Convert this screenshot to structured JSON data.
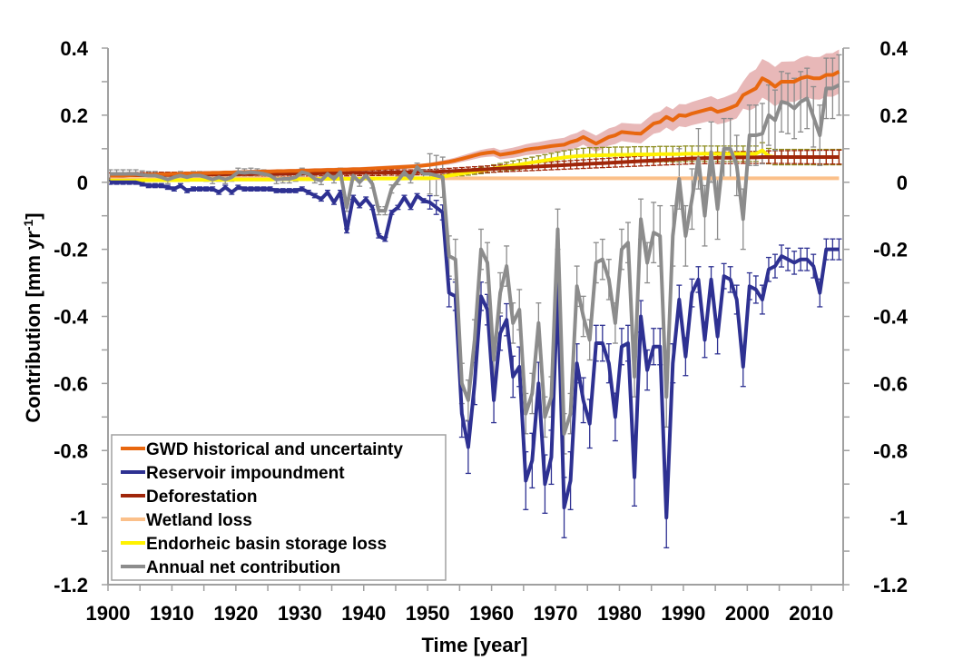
{
  "chart_data": {
    "type": "line",
    "title": "",
    "xlabel": "Time [year]",
    "ylabel": "Contribution [mm yr",
    "ylabel_superscript": "-1",
    "ylabel_close": "]",
    "xlim": [
      1900,
      2015
    ],
    "ylim": [
      -1.2,
      0.4
    ],
    "x_ticks": [
      1900,
      1910,
      1920,
      1930,
      1940,
      1950,
      1960,
      1970,
      1980,
      1990,
      2000,
      2010
    ],
    "x_tick_labels": [
      "1900",
      "1910",
      "1920",
      "1930",
      "1940",
      "1950",
      "1960",
      "1970",
      "1980",
      "1990",
      "2000",
      "2010"
    ],
    "y_ticks": [
      0.4,
      0.2,
      0,
      -0.2,
      -0.4,
      -0.6,
      -0.8,
      -1,
      -1.2
    ],
    "y_tick_labels": [
      "0.4",
      "0.2",
      "0",
      "-0.2",
      "-0.4",
      "-0.6",
      "-0.8",
      "-1",
      "-1.2"
    ],
    "grid": false,
    "legend_position": "bottom-left",
    "x_start": 1900,
    "series": [
      {
        "name": "GWD historical and uncertainty",
        "color": "#E8670F",
        "band_color": "#E0A0A0",
        "uncertainty": "band",
        "values": [
          0.02,
          0.02,
          0.021,
          0.021,
          0.022,
          0.022,
          0.023,
          0.023,
          0.024,
          0.024,
          0.025,
          0.025,
          0.026,
          0.026,
          0.027,
          0.027,
          0.028,
          0.028,
          0.029,
          0.029,
          0.03,
          0.03,
          0.031,
          0.031,
          0.032,
          0.032,
          0.033,
          0.033,
          0.034,
          0.034,
          0.035,
          0.035,
          0.036,
          0.036,
          0.037,
          0.037,
          0.038,
          0.038,
          0.039,
          0.039,
          0.04,
          0.041,
          0.042,
          0.043,
          0.044,
          0.045,
          0.046,
          0.047,
          0.048,
          0.05,
          0.052,
          0.055,
          0.058,
          0.061,
          0.065,
          0.07,
          0.075,
          0.08,
          0.085,
          0.088,
          0.09,
          0.082,
          0.085,
          0.088,
          0.092,
          0.097,
          0.1,
          0.102,
          0.105,
          0.108,
          0.11,
          0.112,
          0.12,
          0.125,
          0.135,
          0.125,
          0.115,
          0.125,
          0.135,
          0.14,
          0.15,
          0.148,
          0.146,
          0.145,
          0.16,
          0.175,
          0.18,
          0.195,
          0.185,
          0.2,
          0.198,
          0.205,
          0.21,
          0.215,
          0.22,
          0.21,
          0.215,
          0.222,
          0.23,
          0.26,
          0.27,
          0.28,
          0.31,
          0.3,
          0.285,
          0.3,
          0.3,
          0.3,
          0.31,
          0.315,
          0.31,
          0.31,
          0.32,
          0.32,
          0.33
        ]
      },
      {
        "name": "Reservoir impoundment",
        "color": "#2E3192",
        "uncertainty": "errorbars",
        "values": [
          0,
          0,
          0,
          0,
          0,
          -0.005,
          -0.01,
          -0.01,
          -0.01,
          -0.015,
          -0.02,
          -0.01,
          -0.025,
          -0.02,
          -0.02,
          -0.02,
          -0.02,
          -0.03,
          -0.015,
          -0.03,
          -0.015,
          -0.02,
          -0.02,
          -0.02,
          -0.02,
          -0.02,
          -0.025,
          -0.025,
          -0.025,
          -0.025,
          -0.02,
          -0.03,
          -0.04,
          -0.05,
          -0.03,
          -0.06,
          -0.03,
          -0.145,
          -0.045,
          -0.07,
          -0.05,
          -0.075,
          -0.16,
          -0.17,
          -0.09,
          -0.075,
          -0.045,
          -0.075,
          -0.04,
          -0.055,
          -0.06,
          -0.075,
          -0.09,
          -0.33,
          -0.34,
          -0.69,
          -0.79,
          -0.6,
          -0.34,
          -0.38,
          -0.65,
          -0.45,
          -0.41,
          -0.58,
          -0.55,
          -0.89,
          -0.83,
          -0.6,
          -0.9,
          -0.82,
          -0.32,
          -0.97,
          -0.89,
          -0.54,
          -0.65,
          -0.72,
          -0.48,
          -0.48,
          -0.54,
          -0.7,
          -0.49,
          -0.48,
          -0.88,
          -0.4,
          -0.56,
          -0.49,
          -0.49,
          -1.0,
          -0.54,
          -0.35,
          -0.52,
          -0.33,
          -0.29,
          -0.47,
          -0.29,
          -0.46,
          -0.28,
          -0.29,
          -0.35,
          -0.55,
          -0.31,
          -0.32,
          -0.35,
          -0.26,
          -0.25,
          -0.22,
          -0.23,
          -0.24,
          -0.23,
          -0.23,
          -0.25,
          -0.33,
          -0.2,
          -0.2,
          -0.2
        ]
      },
      {
        "name": "Deforestation",
        "color": "#A0260A",
        "uncertainty": "errorbars",
        "values": [
          0.02,
          0.02,
          0.02,
          0.021,
          0.021,
          0.021,
          0.021,
          0.021,
          0.022,
          0.022,
          0.022,
          0.022,
          0.022,
          0.023,
          0.023,
          0.023,
          0.023,
          0.023,
          0.024,
          0.024,
          0.024,
          0.024,
          0.024,
          0.025,
          0.025,
          0.025,
          0.025,
          0.025,
          0.026,
          0.026,
          0.026,
          0.026,
          0.026,
          0.027,
          0.027,
          0.027,
          0.027,
          0.027,
          0.028,
          0.028,
          0.028,
          0.028,
          0.028,
          0.029,
          0.029,
          0.029,
          0.029,
          0.029,
          0.03,
          0.03,
          0.03,
          0.031,
          0.032,
          0.033,
          0.034,
          0.035,
          0.036,
          0.037,
          0.038,
          0.039,
          0.04,
          0.041,
          0.042,
          0.043,
          0.044,
          0.045,
          0.046,
          0.047,
          0.048,
          0.049,
          0.05,
          0.051,
          0.052,
          0.053,
          0.054,
          0.055,
          0.056,
          0.057,
          0.058,
          0.059,
          0.06,
          0.061,
          0.062,
          0.063,
          0.064,
          0.065,
          0.066,
          0.067,
          0.068,
          0.069,
          0.07,
          0.071,
          0.071,
          0.072,
          0.072,
          0.073,
          0.073,
          0.073,
          0.074,
          0.074,
          0.074,
          0.074,
          0.075,
          0.075,
          0.075,
          0.075,
          0.075,
          0.075,
          0.075,
          0.075,
          0.075,
          0.075,
          0.075,
          0.075,
          0.075
        ]
      },
      {
        "name": "Wetland loss",
        "color": "#FBC08A",
        "uncertainty": "none",
        "values": [
          0.012,
          0.012,
          0.012,
          0.012,
          0.012,
          0.012,
          0.012,
          0.012,
          0.012,
          0.012,
          0.012,
          0.012,
          0.012,
          0.012,
          0.012,
          0.012,
          0.012,
          0.012,
          0.012,
          0.012,
          0.012,
          0.012,
          0.012,
          0.012,
          0.012,
          0.012,
          0.012,
          0.012,
          0.012,
          0.012,
          0.012,
          0.012,
          0.012,
          0.012,
          0.012,
          0.012,
          0.012,
          0.012,
          0.012,
          0.012,
          0.012,
          0.012,
          0.012,
          0.012,
          0.012,
          0.012,
          0.012,
          0.012,
          0.012,
          0.012,
          0.012,
          0.012,
          0.012,
          0.012,
          0.012,
          0.012,
          0.012,
          0.012,
          0.012,
          0.012,
          0.012,
          0.012,
          0.012,
          0.012,
          0.012,
          0.012,
          0.012,
          0.012,
          0.012,
          0.012,
          0.012,
          0.012,
          0.012,
          0.012,
          0.012,
          0.012,
          0.012,
          0.012,
          0.012,
          0.012,
          0.012,
          0.012,
          0.012,
          0.012,
          0.012,
          0.012,
          0.012,
          0.012,
          0.012,
          0.012,
          0.012,
          0.012,
          0.012,
          0.012,
          0.012,
          0.012,
          0.012,
          0.012,
          0.012,
          0.012,
          0.012,
          0.012,
          0.012,
          0.012,
          0.012,
          0.012,
          0.012,
          0.012,
          0.012,
          0.012,
          0.012,
          0.012,
          0.012,
          0.012,
          0.012
        ]
      },
      {
        "name": "Endorheic basin storage loss",
        "color": "#FFF200",
        "errorbar_color": "#8C8C1E",
        "uncertainty": "errorbars",
        "values": [
          0.005,
          0.005,
          0.005,
          0.005,
          0.005,
          0.006,
          0.006,
          0.006,
          0.006,
          0.006,
          0.006,
          0.006,
          0.007,
          0.007,
          0.007,
          0.007,
          0.007,
          0.007,
          0.007,
          0.008,
          0.008,
          0.008,
          0.008,
          0.008,
          0.008,
          0.008,
          0.009,
          0.009,
          0.009,
          0.009,
          0.009,
          0.009,
          0.009,
          0.01,
          0.01,
          0.01,
          0.01,
          0.01,
          0.01,
          0.01,
          0.011,
          0.011,
          0.011,
          0.011,
          0.011,
          0.011,
          0.011,
          0.012,
          0.012,
          0.012,
          0.012,
          0.014,
          0.017,
          0.02,
          0.023,
          0.026,
          0.029,
          0.032,
          0.035,
          0.038,
          0.041,
          0.044,
          0.047,
          0.05,
          0.053,
          0.056,
          0.059,
          0.062,
          0.065,
          0.068,
          0.071,
          0.074,
          0.076,
          0.078,
          0.079,
          0.08,
          0.08,
          0.081,
          0.081,
          0.082,
          0.082,
          0.082,
          0.083,
          0.083,
          0.083,
          0.083,
          0.084,
          0.084,
          0.084,
          0.084,
          0.085,
          0.085,
          0.085,
          0.085,
          0.085,
          0.085,
          0.085,
          0.085,
          0.085,
          0.085,
          0.085,
          0.085,
          0.095,
          0.078,
          0.075,
          0.075,
          0.075,
          0.075,
          0.075,
          0.075,
          0.075,
          0.075,
          0.075,
          0.075,
          0.075
        ]
      },
      {
        "name": "Annual net contribution",
        "color": "#8C8C8C",
        "uncertainty": "errorbars",
        "values": [
          0.025,
          0.025,
          0.025,
          0.025,
          0.025,
          0.022,
          0.02,
          0.02,
          0.015,
          0.008,
          0.015,
          0.02,
          0.015,
          0.02,
          0.02,
          0.015,
          0.008,
          0.015,
          0.008,
          0.015,
          0.03,
          0.028,
          0.03,
          0.028,
          0.025,
          0.02,
          0.008,
          0.01,
          0.01,
          0.015,
          0.03,
          0.025,
          0.01,
          0.005,
          0.025,
          0.01,
          0.03,
          -0.075,
          0.02,
          0.0,
          0.02,
          -0.005,
          -0.085,
          -0.085,
          -0.02,
          0.005,
          0.03,
          0.01,
          0.045,
          0.025,
          0.025,
          0.02,
          0.015,
          -0.22,
          -0.23,
          -0.6,
          -0.65,
          -0.47,
          -0.2,
          -0.24,
          -0.53,
          -0.33,
          -0.25,
          -0.42,
          -0.38,
          -0.69,
          -0.63,
          -0.42,
          -0.7,
          -0.64,
          -0.14,
          -0.75,
          -0.69,
          -0.31,
          -0.4,
          -0.47,
          -0.24,
          -0.23,
          -0.29,
          -0.42,
          -0.2,
          -0.18,
          -0.58,
          -0.11,
          -0.24,
          -0.15,
          -0.16,
          -0.64,
          -0.16,
          0.01,
          -0.16,
          -0.05,
          0.07,
          -0.1,
          0.09,
          -0.08,
          0.1,
          0.1,
          0.05,
          -0.11,
          0.14,
          0.14,
          0.145,
          0.2,
          0.185,
          0.24,
          0.235,
          0.22,
          0.24,
          0.25,
          0.195,
          0.14,
          0.28,
          0.28,
          0.29
        ]
      }
    ]
  }
}
